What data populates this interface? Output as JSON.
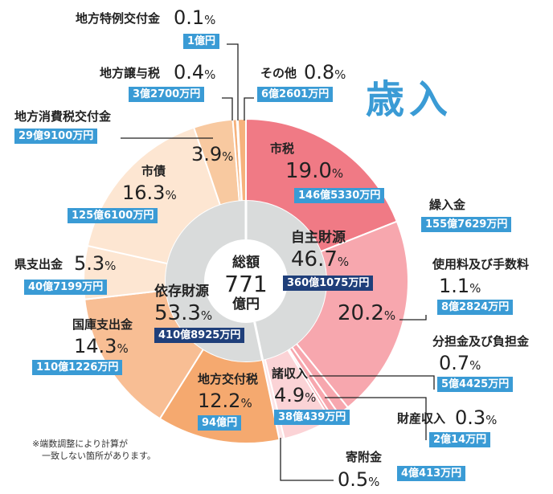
{
  "title": "歳入",
  "center": {
    "label": "総額",
    "value": "771",
    "unit": "億円"
  },
  "note_lines": [
    "※端数調整により計算が",
    "一致しない箇所があります。"
  ],
  "colors": {
    "own": "#f07a85",
    "own_light": "#f7a7ae",
    "dep": "#f6b27c",
    "dep_light": "#fde6d2",
    "accent": "#3a9bd5",
    "dark": "#1f3f7a"
  },
  "chart_data": {
    "type": "pie",
    "title": "歳入",
    "total": "771億円",
    "groups": [
      {
        "name": "自主財源",
        "percent": 46.7,
        "percent_label": "46.7%",
        "amount": "360億1075万円"
      },
      {
        "name": "依存財源",
        "percent": 53.3,
        "percent_label": "53.3%",
        "amount": "410億8925万円"
      }
    ],
    "slices": [
      {
        "name": "市税",
        "percent": 19.0,
        "percent_label": "19.0%",
        "amount": "146億5330万円",
        "group": "自主財源"
      },
      {
        "name": "繰入金",
        "percent": 20.2,
        "percent_label": "20.2%",
        "amount": "155億7629万円",
        "group": "自主財源"
      },
      {
        "name": "使用料及び手数料",
        "percent": 1.1,
        "percent_label": "1.1%",
        "amount": "8億2824万円",
        "group": "自主財源"
      },
      {
        "name": "分担金及び負担金",
        "percent": 0.7,
        "percent_label": "0.7%",
        "amount": "5億4425万円",
        "group": "自主財源"
      },
      {
        "name": "財産収入",
        "percent": 0.3,
        "percent_label": "0.3%",
        "amount": "2億14万円",
        "group": "自主財源"
      },
      {
        "name": "諸収入",
        "percent": 4.9,
        "percent_label": "4.9%",
        "amount": "38億439万円",
        "group": "自主財源"
      },
      {
        "name": "寄附金",
        "percent": 0.5,
        "percent_label": "0.5%",
        "amount": "4億413万円",
        "group": "自主財源"
      },
      {
        "name": "地方交付税",
        "percent": 12.2,
        "percent_label": "12.2%",
        "amount": "94億円",
        "group": "依存財源"
      },
      {
        "name": "国庫支出金",
        "percent": 14.3,
        "percent_label": "14.3%",
        "amount": "110億1226万円",
        "group": "依存財源"
      },
      {
        "name": "県支出金",
        "percent": 5.3,
        "percent_label": "5.3%",
        "amount": "40億7199万円",
        "group": "依存財源"
      },
      {
        "name": "市債",
        "percent": 16.3,
        "percent_label": "16.3%",
        "amount": "125億6100万円",
        "group": "依存財源"
      },
      {
        "name": "地方消費税交付金",
        "percent": 3.9,
        "percent_label": "3.9%",
        "amount": "29億9100万円",
        "group": "依存財源"
      },
      {
        "name": "地方譲与税",
        "percent": 0.4,
        "percent_label": "0.4%",
        "amount": "3億2700万円",
        "group": "依存財源"
      },
      {
        "name": "地方特例交付金",
        "percent": 0.1,
        "percent_label": "0.1%",
        "amount": "1億円",
        "group": "依存財源"
      },
      {
        "name": "その他",
        "percent": 0.8,
        "percent_label": "0.8%",
        "amount": "6億2601万円",
        "group": "依存財源"
      }
    ]
  }
}
